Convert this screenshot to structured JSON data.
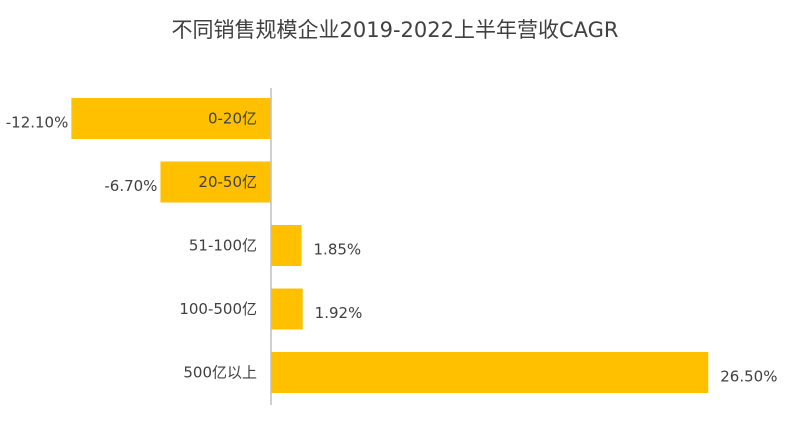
{
  "chart_data": {
    "type": "bar",
    "orientation": "horizontal",
    "title": "不同销售规模企业2019-2022上半年营收CAGR",
    "categories": [
      "0-20亿",
      "20-50亿",
      "51-100亿",
      "100-500亿",
      "500亿以上"
    ],
    "values": [
      -12.1,
      -6.7,
      1.85,
      1.92,
      26.5
    ],
    "value_labels": [
      "-12.10%",
      "-6.70%",
      "1.85%",
      "1.92%",
      "26.50%"
    ],
    "unit": "%",
    "xlim": [
      -13,
      27
    ],
    "grid": false,
    "legend": "none",
    "bar_color": "#FFC000",
    "axis_color": "#BFBFBF"
  }
}
